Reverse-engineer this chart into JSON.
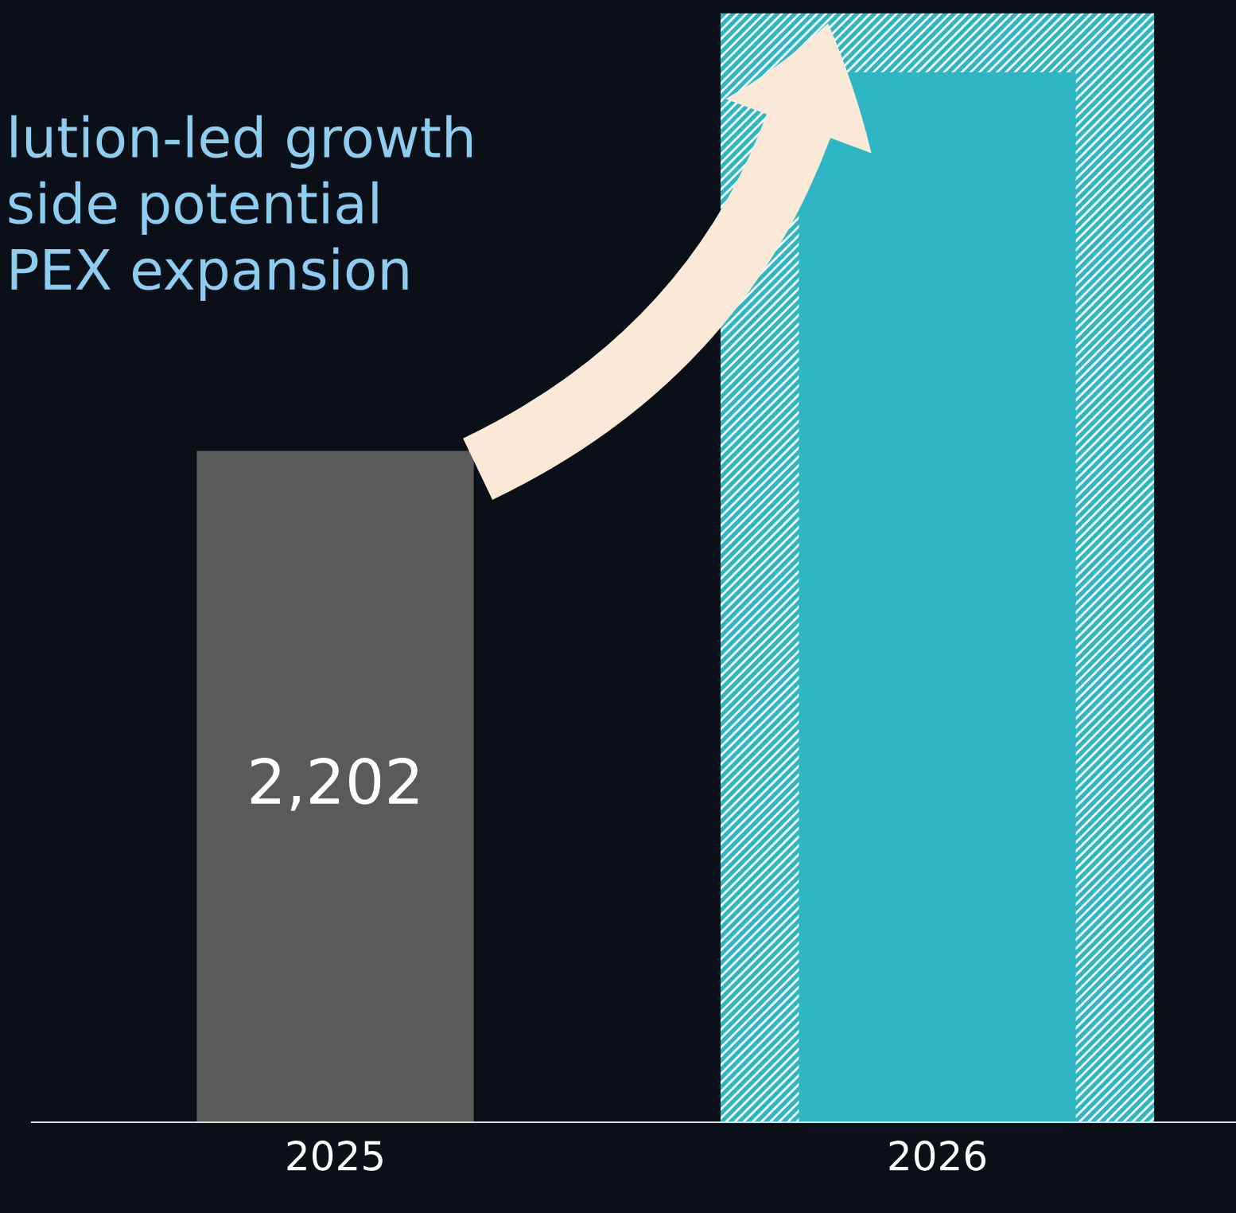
{
  "chart_data": {
    "type": "bar",
    "categories": [
      "2025",
      "2026"
    ],
    "series": [
      {
        "colors": [
          "#5a5a5a",
          "#2fb6c4"
        ],
        "values": [
          2202,
          3444
        ],
        "value_labels": [
          "2,202",
          null
        ]
      },
      {
        "color": "#2fb6c4",
        "values": [
          null,
          3637
        ]
      }
    ],
    "annotations": [
      "lution-led growth\nside potential\nPEX expansion"
    ],
    "grid": false,
    "legend": false
  }
}
